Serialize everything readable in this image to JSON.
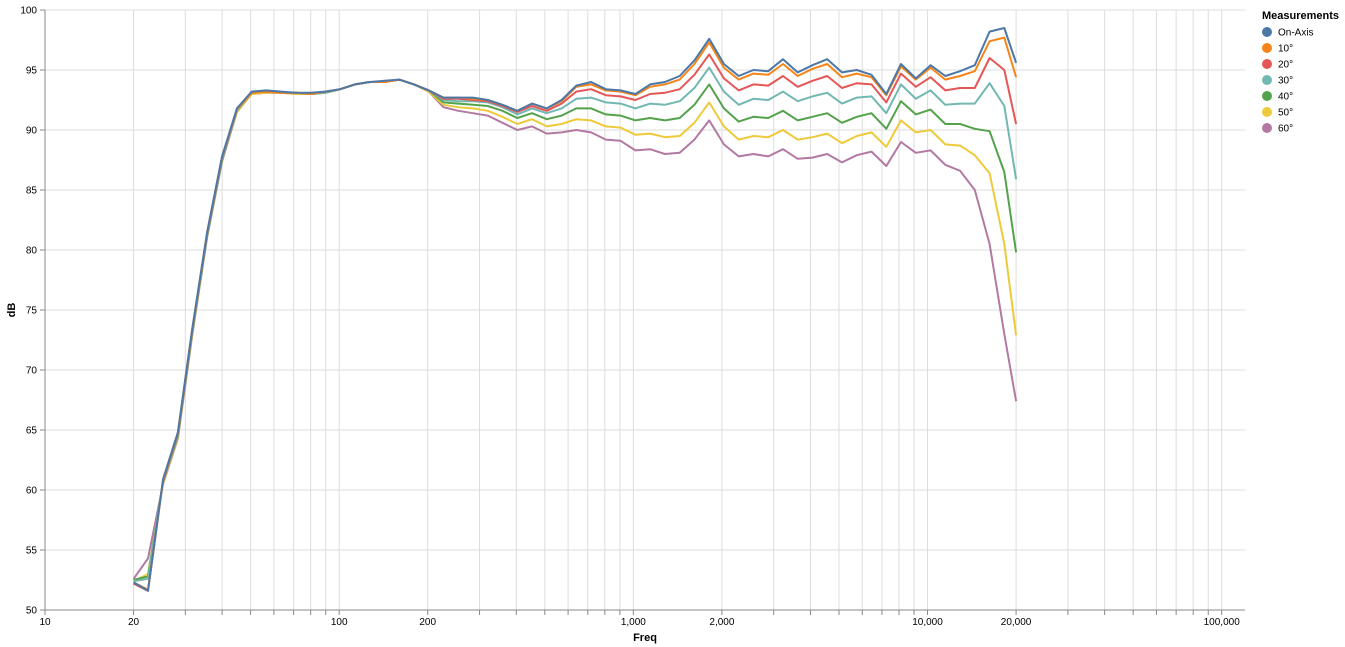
{
  "chart_data": {
    "type": "line",
    "xlabel": "Freq",
    "ylabel": "dB",
    "x_scale": "log",
    "xlim": [
      10,
      120000
    ],
    "ylim": [
      50,
      100
    ],
    "x_ticks": [
      10,
      20,
      100,
      200,
      1000,
      2000,
      10000,
      20000,
      100000
    ],
    "x_tick_labels": [
      "10",
      "20",
      "100",
      "200",
      "1,000",
      "2,000",
      "10,000",
      "20,000",
      "100,000"
    ],
    "y_ticks": [
      50,
      55,
      60,
      65,
      70,
      75,
      80,
      85,
      90,
      95,
      100
    ],
    "grid": true,
    "legend_title": "Measurements",
    "legend_position": "top-right",
    "x": [
      20,
      22.4,
      25.2,
      28.3,
      31.7,
      35.6,
      40,
      44.9,
      50.4,
      56.6,
      63.5,
      71.3,
      80,
      89.8,
      100.8,
      113.1,
      127,
      142.5,
      160,
      179.6,
      201.6,
      226.3,
      254,
      285.1,
      320,
      359.2,
      403.2,
      452.5,
      508,
      570.2,
      640,
      718.4,
      806.3,
      905.1,
      1016,
      1140,
      1280,
      1437,
      1613,
      1810,
      2032,
      2281,
      2560,
      2874,
      3225,
      3620,
      4064,
      4561,
      5120,
      5747,
      6451,
      7241,
      8127,
      9123,
      10240,
      11490,
      12900,
      14480,
      16250,
      18240,
      20000
    ],
    "series": [
      {
        "name": "On-Axis",
        "color": "#4c78a8",
        "values": [
          52.3,
          51.6,
          60.9,
          64.8,
          73.5,
          81.5,
          87.8,
          91.8,
          93.2,
          93.3,
          93.2,
          93.1,
          93.1,
          93.2,
          93.4,
          93.8,
          94.0,
          94.1,
          94.2,
          93.8,
          93.3,
          92.7,
          92.7,
          92.7,
          92.5,
          92.1,
          91.6,
          92.2,
          91.8,
          92.5,
          93.7,
          94.0,
          93.4,
          93.3,
          93.0,
          93.8,
          94.0,
          94.5,
          95.8,
          97.6,
          95.5,
          94.5,
          95.0,
          94.9,
          95.9,
          94.8,
          95.4,
          95.9,
          94.8,
          95.0,
          94.6,
          93.0,
          95.5,
          94.3,
          95.4,
          94.5,
          94.9,
          95.4,
          98.2,
          98.5,
          95.6
        ]
      },
      {
        "name": "10°",
        "color": "#f58518",
        "values": [
          52.3,
          51.7,
          60.9,
          64.8,
          73.5,
          81.5,
          87.8,
          91.7,
          93.1,
          93.2,
          93.1,
          93.1,
          93.0,
          93.2,
          93.4,
          93.8,
          94.0,
          94.0,
          94.2,
          93.8,
          93.3,
          92.7,
          92.7,
          92.6,
          92.5,
          92.1,
          91.6,
          92.2,
          91.8,
          92.4,
          93.6,
          93.8,
          93.3,
          93.2,
          92.9,
          93.6,
          93.8,
          94.2,
          95.5,
          97.3,
          95.2,
          94.2,
          94.7,
          94.6,
          95.5,
          94.5,
          95.1,
          95.5,
          94.4,
          94.7,
          94.4,
          92.9,
          95.3,
          94.2,
          95.2,
          94.2,
          94.5,
          94.9,
          97.4,
          97.7,
          94.4
        ]
      },
      {
        "name": "20°",
        "color": "#e45756",
        "values": [
          52.2,
          51.6,
          60.8,
          64.7,
          73.4,
          81.4,
          87.7,
          91.7,
          93.1,
          93.2,
          93.1,
          93.1,
          93.0,
          93.2,
          93.4,
          93.8,
          94.0,
          94.0,
          94.2,
          93.8,
          93.3,
          92.6,
          92.6,
          92.5,
          92.4,
          92.0,
          91.5,
          92.0,
          91.6,
          92.2,
          93.2,
          93.4,
          92.9,
          92.8,
          92.5,
          93.0,
          93.1,
          93.4,
          94.6,
          96.3,
          94.3,
          93.3,
          93.8,
          93.7,
          94.5,
          93.6,
          94.1,
          94.5,
          93.5,
          93.9,
          93.8,
          92.3,
          94.7,
          93.6,
          94.4,
          93.3,
          93.5,
          93.5,
          96.0,
          95.0,
          90.5
        ]
      },
      {
        "name": "30°",
        "color": "#72b7b2",
        "values": [
          52.4,
          52.6,
          60.8,
          64.6,
          73.3,
          81.3,
          87.6,
          91.6,
          93.1,
          93.2,
          93.1,
          93.1,
          93.0,
          93.1,
          93.4,
          93.8,
          94.0,
          94.0,
          94.2,
          93.8,
          93.3,
          92.5,
          92.4,
          92.4,
          92.3,
          91.9,
          91.3,
          91.8,
          91.4,
          91.8,
          92.6,
          92.7,
          92.3,
          92.2,
          91.8,
          92.2,
          92.1,
          92.4,
          93.5,
          95.2,
          93.2,
          92.1,
          92.6,
          92.5,
          93.2,
          92.4,
          92.8,
          93.1,
          92.2,
          92.7,
          92.8,
          91.4,
          93.8,
          92.6,
          93.3,
          92.1,
          92.2,
          92.2,
          93.9,
          92.0,
          85.9
        ]
      },
      {
        "name": "40°",
        "color": "#54a24b",
        "values": [
          52.5,
          52.8,
          60.7,
          64.5,
          73.2,
          81.2,
          87.5,
          91.6,
          93.1,
          93.2,
          93.1,
          93.1,
          93.0,
          93.1,
          93.4,
          93.8,
          94.0,
          94.0,
          94.2,
          93.8,
          93.3,
          92.3,
          92.2,
          92.1,
          92.0,
          91.6,
          91.0,
          91.4,
          90.9,
          91.2,
          91.8,
          91.8,
          91.3,
          91.2,
          90.8,
          91.0,
          90.8,
          91.0,
          92.1,
          93.8,
          91.8,
          90.7,
          91.1,
          91.0,
          91.6,
          90.8,
          91.1,
          91.4,
          90.6,
          91.1,
          91.4,
          90.1,
          92.4,
          91.3,
          91.7,
          90.5,
          90.5,
          90.1,
          89.9,
          86.5,
          79.8
        ]
      },
      {
        "name": "50°",
        "color": "#eeca3b",
        "values": [
          52.4,
          53.0,
          60.6,
          64.4,
          73.1,
          81.2,
          87.5,
          91.5,
          93.0,
          93.1,
          93.1,
          93.0,
          93.0,
          93.1,
          93.4,
          93.8,
          94.0,
          94.0,
          94.2,
          93.8,
          93.2,
          92.1,
          91.9,
          91.8,
          91.6,
          91.1,
          90.5,
          90.9,
          90.3,
          90.5,
          90.9,
          90.8,
          90.3,
          90.2,
          89.6,
          89.7,
          89.4,
          89.5,
          90.6,
          92.3,
          90.3,
          89.2,
          89.5,
          89.4,
          90.0,
          89.2,
          89.4,
          89.7,
          88.9,
          89.5,
          89.8,
          88.6,
          90.8,
          89.8,
          90.0,
          88.8,
          88.7,
          87.9,
          86.4,
          80.5,
          72.9
        ]
      },
      {
        "name": "60°",
        "color": "#b279a2",
        "values": [
          52.6,
          54.3,
          60.5,
          64.3,
          73.0,
          81.1,
          87.4,
          91.5,
          93.0,
          93.1,
          93.1,
          93.0,
          93.0,
          93.1,
          93.4,
          93.8,
          94.0,
          94.0,
          94.2,
          93.8,
          93.2,
          91.9,
          91.6,
          91.4,
          91.2,
          90.6,
          90.0,
          90.3,
          89.7,
          89.8,
          90.0,
          89.8,
          89.2,
          89.1,
          88.3,
          88.4,
          88.0,
          88.1,
          89.2,
          90.8,
          88.8,
          87.8,
          88.0,
          87.8,
          88.4,
          87.6,
          87.7,
          88.0,
          87.3,
          87.9,
          88.2,
          87.0,
          89.0,
          88.1,
          88.3,
          87.1,
          86.6,
          85.0,
          80.5,
          73.0,
          67.4
        ]
      }
    ]
  }
}
